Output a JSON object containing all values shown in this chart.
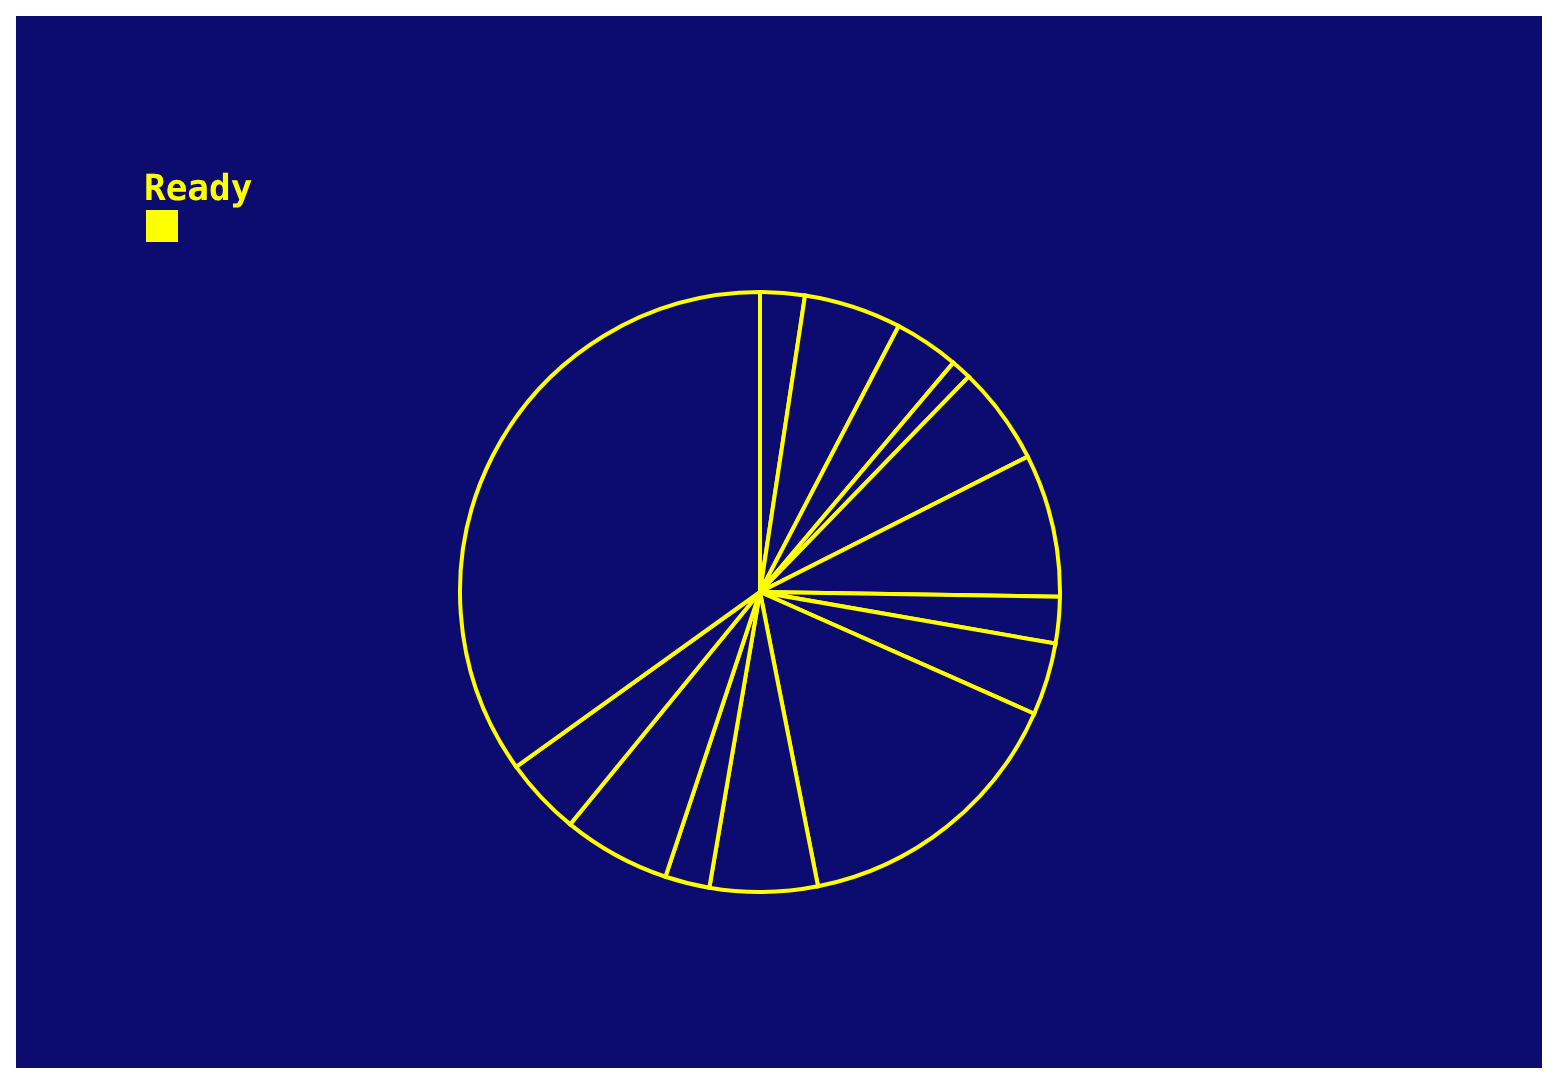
{
  "chart_data": {
    "type": "pie",
    "categories": [
      null,
      null,
      null,
      null,
      null,
      null,
      null,
      null,
      null,
      null,
      null,
      null,
      null,
      null
    ],
    "values": [
      2.4,
      5.25,
      3.5,
      1.1,
      5.3,
      7.7,
      2.5,
      3.9,
      15.25,
      5.8,
      2.4,
      5.8,
      4.2,
      34.9
    ],
    "colors": [
      "#ffff00",
      "#ffff00",
      "#ffff00",
      "#ffff00",
      "#ffff00",
      "#ffff00",
      "#ffff00",
      "#ffff00",
      "#ffff00",
      "#ffff00",
      "#ffff00",
      "#ffff00",
      "#ffff00",
      "#ffff00"
    ],
    "annotations": [
      "Ready"
    ]
  }
}
